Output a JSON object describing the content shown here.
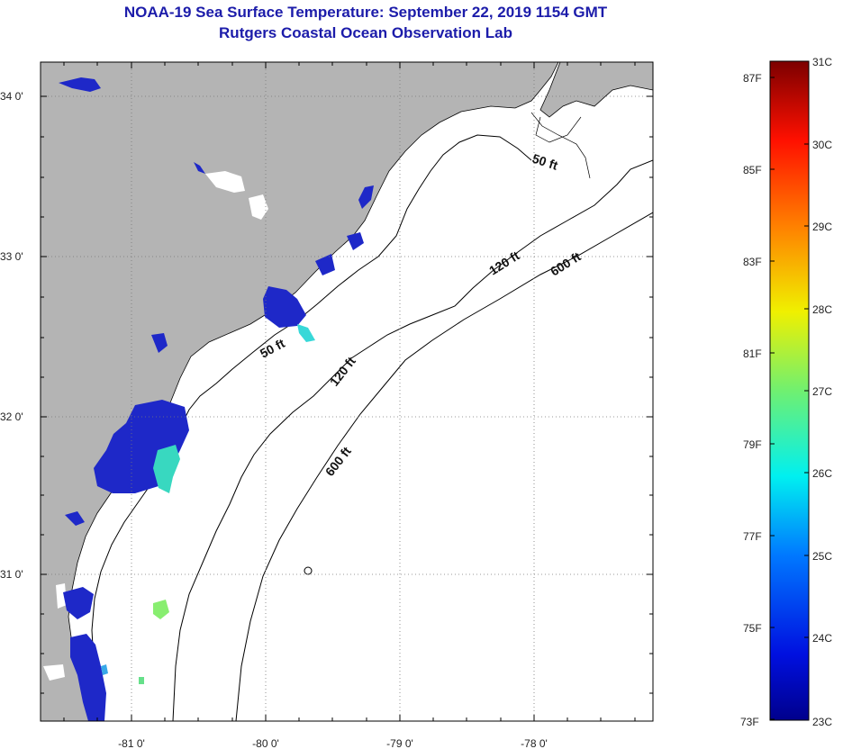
{
  "header": {
    "title": "NOAA-19 Sea Surface Temperature:  September 22, 2019 1154 GMT",
    "subtitle": "Rutgers Coastal Ocean Observation Lab"
  },
  "map": {
    "x_ticks": [
      "-81 0'",
      "-80 0'",
      "-79 0'",
      "-78 0'"
    ],
    "y_ticks": [
      "34 0'",
      "33 0'",
      "32 0'",
      "31 0'"
    ],
    "contours": {
      "c50_a": "50 ft",
      "c50_b": "50 ft",
      "c120_a": "120 ft",
      "c120_b": "120 ft",
      "c600_a": "600 ft",
      "c600_b": "600 ft"
    },
    "colors": {
      "land": "#b4b4b4",
      "cloud": "#ffffff",
      "sst_cold": "#1e28c8",
      "sst_mid": "#38d8d8"
    }
  },
  "colorbar": {
    "celsius_labels": [
      "31C",
      "30C",
      "29C",
      "28C",
      "27C",
      "26C",
      "25C",
      "24C",
      "23C"
    ],
    "fahrenheit_labels": [
      "87F",
      "85F",
      "83F",
      "81F",
      "79F",
      "77F",
      "75F",
      "73F"
    ]
  }
}
